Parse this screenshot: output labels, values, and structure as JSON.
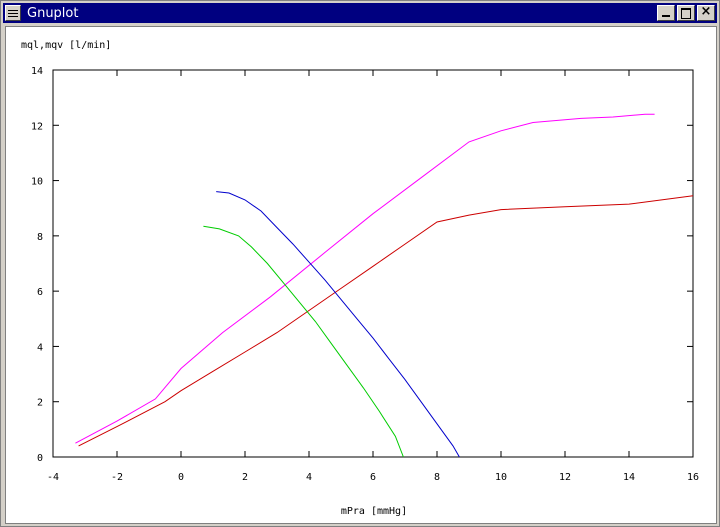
{
  "window": {
    "title": "Gnuplot",
    "icons": {
      "system_menu": "system-menu-icon",
      "minimize": "minimize-icon",
      "maximize": "maximize-icon",
      "close": "close-icon"
    },
    "close_glyph": "×"
  },
  "chart_data": {
    "type": "line",
    "title": "",
    "xlabel": "mPra [mmHg]",
    "ylabel": "mql,mqv [l/min]",
    "xlim": [
      -4,
      16
    ],
    "ylim": [
      0,
      14
    ],
    "xticks": [
      -4,
      -2,
      0,
      2,
      4,
      6,
      8,
      10,
      12,
      14,
      16
    ],
    "yticks": [
      0,
      2,
      4,
      6,
      8,
      10,
      12,
      14
    ],
    "grid": false,
    "legend": "none",
    "series": [
      {
        "color": "#ff00ff",
        "x": [
          -3.3,
          -2.0,
          -0.8,
          0.0,
          1.3,
          2.8,
          4.5,
          6.0,
          7.5,
          9.0,
          10.0,
          11.0,
          12.5,
          13.5,
          14.5,
          14.8
        ],
        "y": [
          0.5,
          1.3,
          2.1,
          3.2,
          4.5,
          5.8,
          7.4,
          8.8,
          10.1,
          11.4,
          11.8,
          12.1,
          12.25,
          12.3,
          12.4,
          12.4
        ]
      },
      {
        "color": "#cc0000",
        "x": [
          -3.2,
          -2.0,
          -0.5,
          0.0,
          1.0,
          2.0,
          3.0,
          4.0,
          5.0,
          6.0,
          7.0,
          8.0,
          9.0,
          10.0,
          12.0,
          14.0,
          16.0
        ],
        "y": [
          0.4,
          1.1,
          2.0,
          2.4,
          3.1,
          3.8,
          4.5,
          5.3,
          6.1,
          6.9,
          7.7,
          8.5,
          8.75,
          8.95,
          9.05,
          9.15,
          9.45
        ]
      },
      {
        "color": "#0000cc",
        "x": [
          1.1,
          1.5,
          2.0,
          2.5,
          3.0,
          3.5,
          4.0,
          4.5,
          5.0,
          5.5,
          6.0,
          6.5,
          7.0,
          7.5,
          8.0,
          8.5,
          8.7
        ],
        "y": [
          9.6,
          9.55,
          9.3,
          8.9,
          8.3,
          7.7,
          7.05,
          6.4,
          5.7,
          5.0,
          4.3,
          3.55,
          2.8,
          2.0,
          1.2,
          0.4,
          0.0
        ]
      },
      {
        "color": "#00cc00",
        "x": [
          0.7,
          1.2,
          1.8,
          2.2,
          2.7,
          3.2,
          3.7,
          4.2,
          4.7,
          5.2,
          5.7,
          6.2,
          6.7,
          6.95
        ],
        "y": [
          8.35,
          8.25,
          8.0,
          7.6,
          7.0,
          6.3,
          5.6,
          4.9,
          4.1,
          3.3,
          2.5,
          1.65,
          0.75,
          0.0
        ]
      }
    ]
  }
}
